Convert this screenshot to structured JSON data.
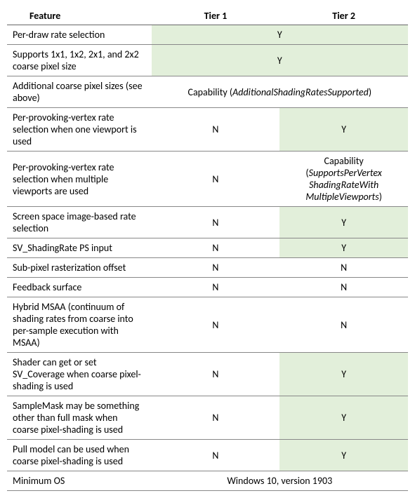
{
  "table": {
    "headers": [
      "Feature",
      "Tier 1",
      "Tier 2"
    ],
    "rows": [
      {
        "feature": "Per-draw rate selection",
        "tier1": {
          "v": "Y",
          "yes": true,
          "span": 2
        }
      },
      {
        "feature": "Supports 1x1, 1x2, 2x1, and 2x2 coarse pixel size",
        "tier1": {
          "v": "Y",
          "yes": true,
          "span": 2
        }
      },
      {
        "feature": "Additional coarse pixel sizes (see above)",
        "tier1": {
          "cap_prefix": "Capability (",
          "cap_name": "AdditionalShadingRatesSupported",
          "cap_suffix": ")",
          "span": 2
        }
      },
      {
        "feature": "Per-provoking-vertex rate selection when one viewport is used",
        "tier1": {
          "v": "N"
        },
        "tier2": {
          "v": "Y",
          "yes": true
        }
      },
      {
        "feature": "Per-provoking-vertex rate selection when multiple viewports are used",
        "tier1": {
          "v": "N"
        },
        "tier2": {
          "cap_prefix": "Capability (",
          "cap_lines": [
            "SupportsPerVertex",
            "ShadingRateWith",
            "MultipleViewports"
          ],
          "cap_suffix": ")"
        }
      },
      {
        "feature": "Screen space image-based rate selection",
        "tier1": {
          "v": "N"
        },
        "tier2": {
          "v": "Y",
          "yes": true
        }
      },
      {
        "feature": "SV_ShadingRate PS input",
        "tier1": {
          "v": "N"
        },
        "tier2": {
          "v": "Y",
          "yes": true
        }
      },
      {
        "feature": "Sub-pixel rasterization offset",
        "tier1": {
          "v": "N"
        },
        "tier2": {
          "v": "N"
        }
      },
      {
        "feature": "Feedback surface",
        "tier1": {
          "v": "N"
        },
        "tier2": {
          "v": "N"
        }
      },
      {
        "feature": "Hybrid MSAA (continuum of shading rates from coarse into per-sample execution with MSAA)",
        "tier1": {
          "v": "N"
        },
        "tier2": {
          "v": "N"
        }
      },
      {
        "feature": "Shader can get or set SV_Coverage when coarse pixel-shading is used",
        "tier1": {
          "v": "N"
        },
        "tier2": {
          "v": "Y",
          "yes": true
        }
      },
      {
        "feature": "SampleMask may be something other than full mask when coarse pixel-shading is used",
        "tier1": {
          "v": "N"
        },
        "tier2": {
          "v": "Y",
          "yes": true
        }
      },
      {
        "feature": "Pull model can be used when coarse pixel-shading is used",
        "tier1": {
          "v": "N"
        },
        "tier2": {
          "v": "Y",
          "yes": true
        }
      },
      {
        "feature": "Minimum OS",
        "tier1": {
          "v": "Windows 10, version 1903",
          "span": 2
        }
      }
    ],
    "colors": {
      "yes_bg": "#e2efda",
      "border": "#888888",
      "header_border": "#666666",
      "text": "#000000",
      "background": "#ffffff"
    },
    "font": {
      "family": "Calibri",
      "size_pt": 11
    }
  }
}
